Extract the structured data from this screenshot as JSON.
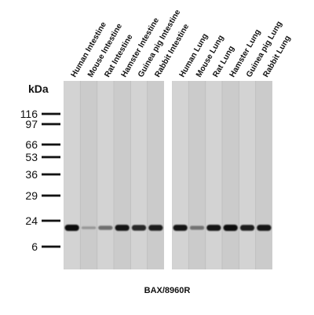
{
  "figure": {
    "unit_label": "kDa",
    "caption": "BAX/8960R",
    "markers": [
      "116",
      "97",
      "66",
      "53",
      "36",
      "29",
      "24",
      "6"
    ],
    "band_color": "#111111",
    "membrane_color": "#cfcfcf"
  },
  "panels": [
    {
      "name": "intestine",
      "lanes": [
        {
          "label": "Human Intestine",
          "band_intensity": 1.0
        },
        {
          "label": "Mouse Intestine",
          "band_intensity": 0.12
        },
        {
          "label": "Rat Intestine",
          "band_intensity": 0.45
        },
        {
          "label": "Hamster Intestine",
          "band_intensity": 0.95
        },
        {
          "label": "Guinea pig Intestine",
          "band_intensity": 0.85
        },
        {
          "label": "Rabbit Intestine",
          "band_intensity": 0.9
        }
      ]
    },
    {
      "name": "lung",
      "lanes": [
        {
          "label": "Human Lung",
          "band_intensity": 0.95
        },
        {
          "label": "Mouse Lung",
          "band_intensity": 0.4
        },
        {
          "label": "Rat Lung",
          "band_intensity": 0.95
        },
        {
          "label": "Hamster Lung",
          "band_intensity": 1.0
        },
        {
          "label": "Guinea pig Lung",
          "band_intensity": 0.9
        },
        {
          "label": "Rabbit Lung",
          "band_intensity": 0.95
        }
      ]
    }
  ]
}
